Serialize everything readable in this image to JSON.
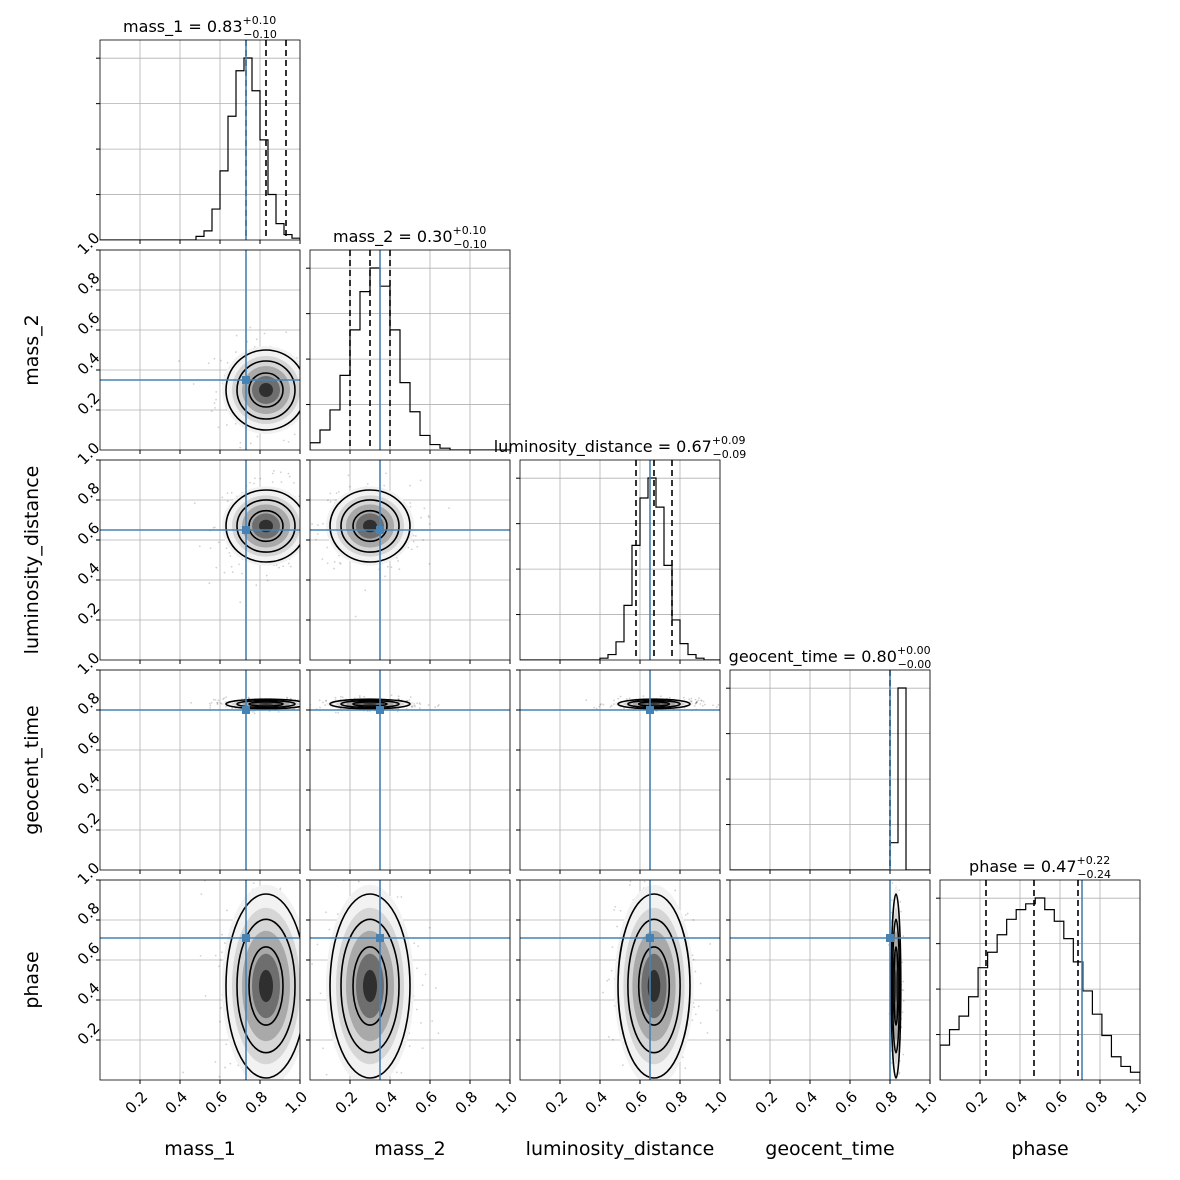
{
  "chart_data": {
    "type": "corner",
    "parameters": [
      "mass_1",
      "mass_2",
      "luminosity_distance",
      "geocent_time",
      "phase"
    ],
    "axis_range": [
      0,
      1
    ],
    "tick_values": [
      0.2,
      0.4,
      0.6,
      0.8,
      1.0
    ],
    "tick_labels": [
      "0.2",
      "0.4",
      "0.6",
      "0.8",
      "1.0"
    ],
    "diagonal_tick_labels": [
      "0.2",
      "0.4",
      "0.6",
      "0.8"
    ],
    "grid": true,
    "truth_color": "#4682b4",
    "truths": [
      0.73,
      0.35,
      0.65,
      0.8,
      0.71
    ],
    "titles": [
      {
        "name": "mass_1",
        "value": "0.83",
        "plus": "+0.10",
        "minus": "−0.10"
      },
      {
        "name": "mass_2",
        "value": "0.30",
        "plus": "+0.10",
        "minus": "−0.10"
      },
      {
        "name": "luminosity_distance",
        "value": "0.67",
        "plus": "+0.09",
        "minus": "−0.09"
      },
      {
        "name": "geocent_time",
        "value": "0.80",
        "plus": "+0.00",
        "minus": "−0.00"
      },
      {
        "name": "phase",
        "value": "0.47",
        "plus": "+0.22",
        "minus": "−0.24"
      }
    ],
    "quantiles": [
      [
        0.73,
        0.83,
        0.93
      ],
      [
        0.2,
        0.3,
        0.4
      ],
      [
        0.58,
        0.67,
        0.76
      ],
      [
        0.8,
        0.8,
        0.8
      ],
      [
        0.23,
        0.47,
        0.69
      ]
    ],
    "histograms": [
      [
        0,
        0,
        0,
        0,
        0,
        0,
        0,
        0,
        0,
        0,
        0,
        0,
        0.02,
        0.05,
        0.17,
        0.38,
        0.68,
        0.93,
        1.0,
        0.82,
        0.55,
        0.25,
        0.09,
        0.03,
        0.01
      ],
      [
        0.04,
        0.11,
        0.22,
        0.41,
        0.66,
        0.87,
        1.0,
        0.9,
        0.66,
        0.37,
        0.21,
        0.08,
        0.03,
        0.01,
        0,
        0,
        0,
        0,
        0,
        0
      ],
      [
        0,
        0,
        0,
        0,
        0,
        0,
        0,
        0,
        0,
        0,
        0.01,
        0.03,
        0.1,
        0.3,
        0.63,
        0.89,
        1.0,
        0.84,
        0.52,
        0.22,
        0.09,
        0.03,
        0.01,
        0,
        0
      ],
      [
        0,
        0,
        0,
        0,
        0,
        0,
        0,
        0,
        0,
        0,
        0,
        0,
        0,
        0,
        0,
        0,
        0,
        0,
        0,
        0,
        0.15,
        1.0,
        0,
        0,
        0
      ],
      [
        0.18,
        0.26,
        0.33,
        0.43,
        0.58,
        0.66,
        0.75,
        0.83,
        0.88,
        0.91,
        0.94,
        0.88,
        0.82,
        0.73,
        0.61,
        0.46,
        0.34,
        0.23,
        0.12,
        0.07,
        0.04
      ]
    ],
    "posterior_means": [
      0.83,
      0.3,
      0.67,
      0.83,
      0.47
    ],
    "posterior_sigmas": [
      0.1,
      0.1,
      0.09,
      0.012,
      0.23
    ]
  }
}
